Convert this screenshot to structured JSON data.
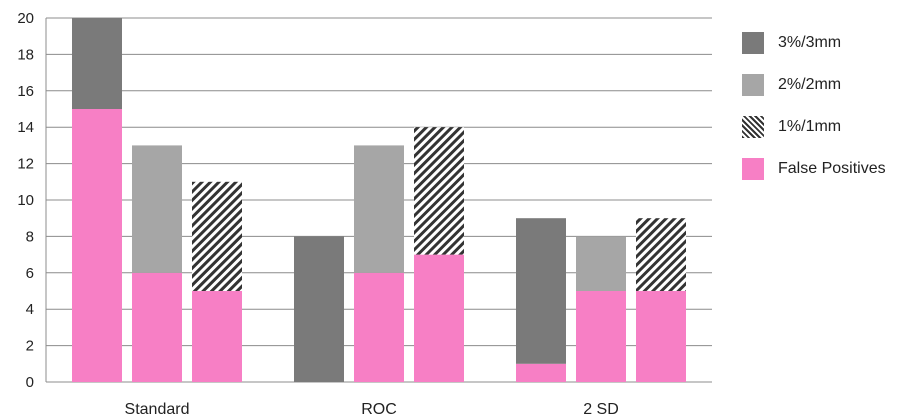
{
  "chart_data": {
    "type": "bar",
    "stacked": true,
    "categories": [
      "Standard",
      "ROC",
      "2 SD"
    ],
    "bars_per_category": [
      "3%/3mm",
      "2%/2mm",
      "1%/1mm"
    ],
    "series": [
      {
        "name": "3%/3mm",
        "values": [
          5,
          8,
          8
        ],
        "pattern": "solid",
        "color": "#7a7a7a"
      },
      {
        "name": "2%/2mm",
        "values": [
          7,
          7,
          3
        ],
        "pattern": "solid",
        "color": "#a6a6a6"
      },
      {
        "name": "1%/1mm",
        "values": [
          6,
          7,
          4
        ],
        "pattern": "diagonal-hatch",
        "color": "#333333"
      },
      {
        "name": "False Positives",
        "values": [
          [
            15,
            6,
            5
          ],
          [
            0,
            6,
            7
          ],
          [
            1,
            5,
            5
          ]
        ],
        "color": "#f77fc5"
      }
    ],
    "totals": [
      [
        20,
        13,
        11
      ],
      [
        8,
        13,
        14
      ],
      [
        9,
        8,
        9
      ]
    ],
    "ylim": [
      0,
      20
    ],
    "yticks": [
      0,
      2,
      4,
      6,
      8,
      10,
      12,
      14,
      16,
      18,
      20
    ],
    "grid": true,
    "legend_position": "right",
    "title": "",
    "xlabel": "",
    "ylabel": ""
  }
}
